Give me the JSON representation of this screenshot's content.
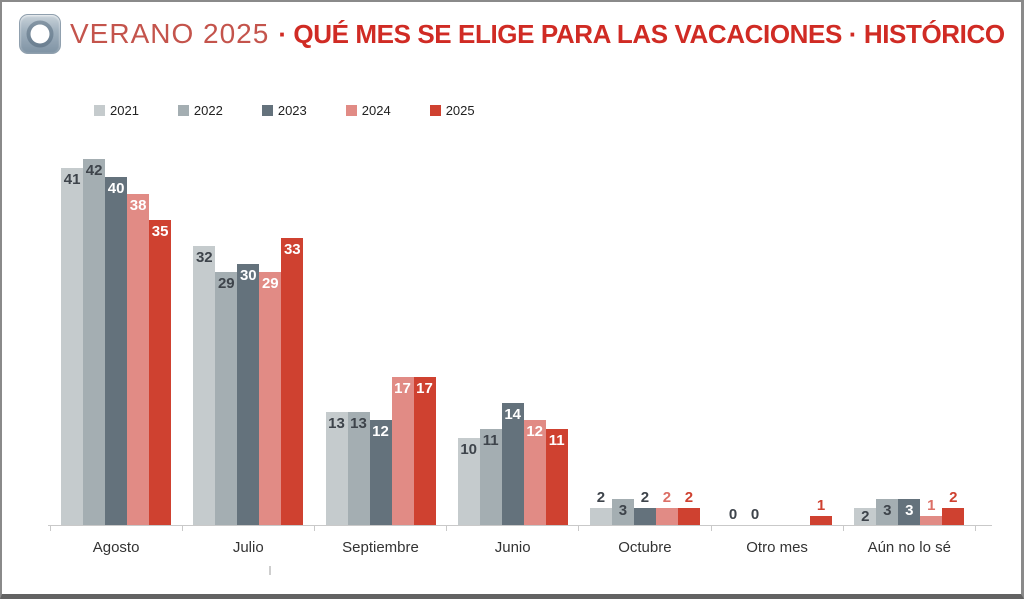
{
  "header": {
    "brand": "VERANO 2025",
    "title": "· QUÉ MES SE ELIGE PARA LAS VACACIONES · HISTÓRICO",
    "brand_color": "#c4544c",
    "title_color": "#d02b24"
  },
  "chart_data": {
    "type": "bar",
    "title": "VERANO 2025 · QUÉ MES SE ELIGE PARA LAS VACACIONES · HISTÓRICO",
    "categories": [
      "Agosto",
      "Julio",
      "Septiembre",
      "Junio",
      "Octubre",
      "Otro mes",
      "Aún no lo sé"
    ],
    "series": [
      {
        "name": "2021",
        "color": "#c5cbcd",
        "label_color_inside": "#3e444b",
        "label_color_outside": "#3e444b",
        "values": [
          41,
          32,
          13,
          10,
          2,
          0,
          2
        ],
        "value_label_position": [
          "in",
          "in",
          "in",
          "in",
          "out",
          "out",
          "in"
        ]
      },
      {
        "name": "2022",
        "color": "#a4aeb2",
        "label_color_inside": "#3e444b",
        "label_color_outside": "#3e444b",
        "values": [
          42,
          29,
          13,
          11,
          3,
          0,
          3
        ],
        "value_label_position": [
          "in",
          "in",
          "in",
          "in",
          "in",
          "out",
          "in"
        ]
      },
      {
        "name": "2023",
        "color": "#64727c",
        "label_color_inside": "#ffffff",
        "label_color_outside": "#3e444b",
        "values": [
          40,
          30,
          12,
          14,
          2,
          null,
          3
        ],
        "value_label_position": [
          "in",
          "in",
          "in",
          "in",
          "out",
          null,
          "in"
        ]
      },
      {
        "name": "2024",
        "color": "#e18b85",
        "label_color_inside": "#ffffff",
        "label_color_outside": "#dc6f66",
        "values": [
          38,
          29,
          17,
          12,
          2,
          null,
          1
        ],
        "value_label_position": [
          "in",
          "in",
          "in",
          "in",
          "out",
          null,
          "out"
        ]
      },
      {
        "name": "2025",
        "color": "#cf4130",
        "label_color_inside": "#ffffff",
        "label_color_outside": "#cf4130",
        "values": [
          35,
          33,
          17,
          11,
          2,
          1,
          2
        ],
        "value_label_position": [
          "in",
          "in",
          "in",
          "in",
          "out",
          "out",
          "out"
        ]
      }
    ],
    "ylim": [
      0,
      45
    ],
    "grid": false,
    "legend_position": "top-left",
    "value_labels": true,
    "axis_color": "#c9c9c9"
  }
}
